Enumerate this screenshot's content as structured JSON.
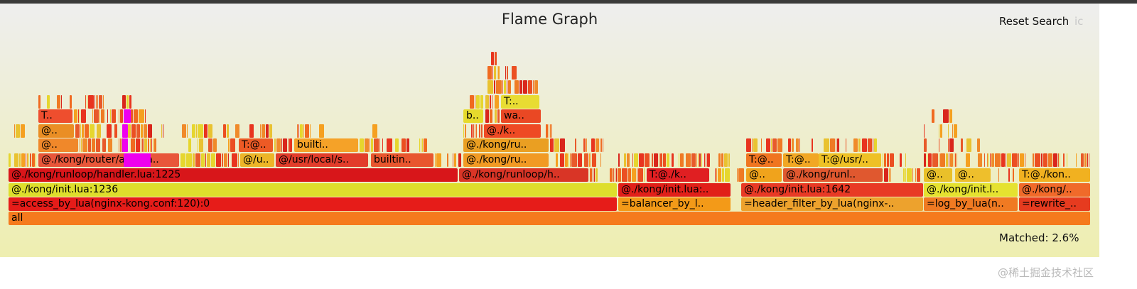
{
  "header": {
    "title": "Flame Graph",
    "reset_search_label": "Reset Search",
    "ic_label": "ic"
  },
  "status": {
    "matched_text": "Matched: 2.6%"
  },
  "watermark": "@稀土掘金技术社区",
  "colors": {
    "search_match": "#ee00ee",
    "root": "#f57a1d"
  },
  "frames": [
    {
      "label": "all",
      "color": "#f57a1d"
    },
    {
      "label": "=access_by_lua(nginx-kong.conf:120):0",
      "color": "#e61c19"
    },
    {
      "label": "=balancer_by_l..",
      "color": "#f39a18"
    },
    {
      "label": "=header_filter_by_lua(nginx-..",
      "color": "#eda22d"
    },
    {
      "label": "=log_by_lua(n..",
      "color": "#f07a22"
    },
    {
      "label": "=rewrite_..",
      "color": "#e63b1f"
    },
    {
      "label": "@./kong/init.lua:1236",
      "color": "#dede2c"
    },
    {
      "label": "@./kong/init.lua:..",
      "color": "#e12019"
    },
    {
      "label": "@./kong/init.lua:1642",
      "color": "#e83a25"
    },
    {
      "label": "@./kong/init.l..",
      "color": "#e5e230"
    },
    {
      "label": "@./kong/..",
      "color": "#f06a2a"
    },
    {
      "label": "@./kong/runloop/handler.lua:1225",
      "color": "#d8161a"
    },
    {
      "label": "@./kong/runloop/h..",
      "color": "#d93526"
    },
    {
      "label": "T:@./k..",
      "color": "#e01f22"
    },
    {
      "label": "@..",
      "color": "#f0a31c"
    },
    {
      "label": "@./kong/runl..",
      "color": "#e0582f"
    },
    {
      "label": "@..",
      "color": "#e9c02a"
    },
    {
      "label": "@..",
      "color": "#eebf2c"
    },
    {
      "label": "T:@./kon..",
      "color": "#f1b120"
    },
    {
      "label": "@./kong/router/atc.lua..",
      "color": "#e8563a"
    },
    {
      "label": "@/u..",
      "color": "#ecb528"
    },
    {
      "label": "@/usr/local/s..",
      "color": "#e23d2b"
    },
    {
      "label": "builtin..",
      "color": "#e8562e"
    },
    {
      "label": "@./kong/ru..",
      "color": "#f19a24"
    },
    {
      "label": "T:@..",
      "color": "#f07520"
    },
    {
      "label": "T:@..",
      "color": "#f1a724"
    },
    {
      "label": "T:@/usr/..",
      "color": "#eec126"
    },
    {
      "label": "@..",
      "color": "#f0882a"
    },
    {
      "label": "T:@..",
      "color": "#ed5a25"
    },
    {
      "label": "builti..",
      "color": "#f5a228"
    },
    {
      "label": "@./kong/ru..",
      "color": "#ea9f22"
    },
    {
      "label": "@..",
      "color": "#ea8e24"
    },
    {
      "label": "@./k..",
      "color": "#ee4a24"
    },
    {
      "label": "T..",
      "color": "#ee4e2e"
    },
    {
      "label": "b..",
      "color": "#e6da2c"
    },
    {
      "label": "wa..",
      "color": "#ea4824"
    },
    {
      "label": "T:..",
      "color": "#e8dc32"
    }
  ]
}
